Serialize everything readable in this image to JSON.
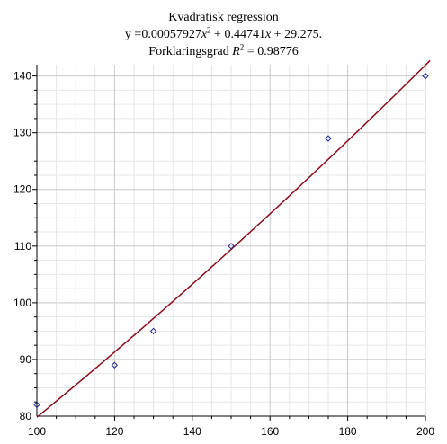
{
  "chart_data": {
    "type": "scatter",
    "title": "Kvadratisk regression",
    "equation": {
      "prefix": "y =0.00057927",
      "var1": "x",
      "exp1": "2",
      "middle": " + 0.44741",
      "var2": "x",
      "suffix": " + 29.275."
    },
    "r2": {
      "prefix": "Forklaringsgrad ",
      "var": "R",
      "exp": "2",
      "suffix": " = 0.98776"
    },
    "xlabel": "",
    "ylabel": "",
    "xlim": [
      100,
      200
    ],
    "ylim": [
      80,
      142
    ],
    "x_ticks": [
      100,
      120,
      140,
      160,
      180,
      200
    ],
    "y_ticks": [
      80,
      90,
      100,
      110,
      120,
      130,
      140
    ],
    "grid": true,
    "series": [
      {
        "points": [
          {
            "x": 100,
            "y": 82
          },
          {
            "x": 120,
            "y": 89
          },
          {
            "x": 130,
            "y": 95
          },
          {
            "x": 150,
            "y": 110
          },
          {
            "x": 175,
            "y": 129
          },
          {
            "x": 200,
            "y": 140
          }
        ],
        "marker": "diamond",
        "color": "#1f2a8a"
      }
    ],
    "fit_curve": {
      "type": "quadratic",
      "coefficients": {
        "a": 0.00057927,
        "b": 0.44741,
        "c": 29.275
      },
      "color": "#8b0a1a"
    }
  }
}
